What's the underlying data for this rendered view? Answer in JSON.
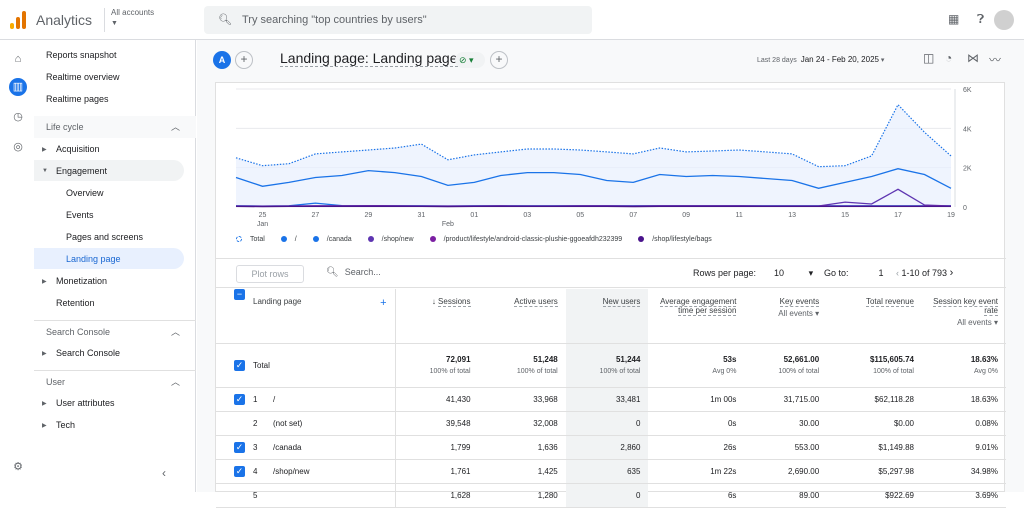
{
  "app": {
    "brand": "Analytics",
    "account_label": "All accounts",
    "search_placeholder": "Try searching \"top countries by users\""
  },
  "nav": {
    "top": [
      "Reports snapshot",
      "Realtime overview",
      "Realtime pages"
    ],
    "lifecycle": "Life cycle",
    "acquisition": "Acquisition",
    "engagement": "Engagement",
    "engagement_items": [
      "Overview",
      "Events",
      "Pages and screens",
      "Landing page"
    ],
    "monetization": "Monetization",
    "retention": "Retention",
    "search_console_section": "Search Console",
    "search_console": "Search Console",
    "user_section": "User",
    "user_attributes": "User attributes",
    "tech": "Tech"
  },
  "report": {
    "badge": "A",
    "title": "Landing page: Landing page",
    "date_prefix": "Last 28 days",
    "date_range": "Jan 24 - Feb 20, 2025"
  },
  "chart_data": {
    "type": "line",
    "x": [
      "Jan 24",
      "Jan 25",
      "Jan 26",
      "Jan 27",
      "Jan 28",
      "Jan 29",
      "Jan 30",
      "Jan 31",
      "Feb 01",
      "Feb 02",
      "Feb 03",
      "Feb 04",
      "Feb 05",
      "Feb 06",
      "Feb 07",
      "Feb 08",
      "Feb 09",
      "Feb 10",
      "Feb 11",
      "Feb 12",
      "Feb 13",
      "Feb 14",
      "Feb 15",
      "Feb 16",
      "Feb 17",
      "Feb 18",
      "Feb 19",
      "Feb 20"
    ],
    "x_tick_labels": [
      "25",
      "27",
      "29",
      "31",
      "01",
      "03",
      "05",
      "07",
      "09",
      "11",
      "13",
      "15",
      "17",
      "19"
    ],
    "x_month_labels": [
      "Jan",
      "Feb"
    ],
    "y_tick_labels": [
      "6K",
      "4K",
      "2K",
      "0"
    ],
    "ylim": [
      0,
      6000
    ],
    "series": [
      {
        "name": "Total",
        "color": "#1a73e8",
        "style": "dotted",
        "values": [
          2500,
          2100,
          2200,
          2700,
          2800,
          2900,
          3000,
          3200,
          2400,
          2650,
          2800,
          2950,
          2950,
          2900,
          2800,
          2700,
          3000,
          2800,
          2850,
          2900,
          2800,
          2700,
          2050,
          2100,
          2600,
          5200,
          3800,
          2600
        ]
      },
      {
        "name": "/",
        "color": "#1a73e8",
        "values": [
          1500,
          1050,
          1250,
          1500,
          1600,
          1850,
          1750,
          1550,
          1100,
          1250,
          1600,
          1750,
          1750,
          1650,
          1350,
          1250,
          1650,
          1550,
          1600,
          1550,
          1450,
          1350,
          950,
          1250,
          1550,
          1950,
          1650,
          950
        ]
      },
      {
        "name": "/canada",
        "color": "#1a73e8",
        "values": [
          60,
          50,
          60,
          200,
          70,
          60,
          60,
          60,
          50,
          60,
          60,
          60,
          60,
          60,
          60,
          60,
          60,
          60,
          60,
          60,
          60,
          60,
          60,
          60,
          60,
          60,
          60,
          60
        ]
      },
      {
        "name": "/shop/new",
        "color": "#5e35b1",
        "values": [
          50,
          40,
          50,
          60,
          60,
          70,
          60,
          50,
          50,
          50,
          60,
          50,
          50,
          60,
          60,
          50,
          60,
          60,
          60,
          60,
          50,
          50,
          50,
          250,
          150,
          900,
          100,
          50
        ]
      },
      {
        "name": "/product/lifestyle/android-classic-plushie-ggoeafdh232399",
        "color": "#7b1fa2",
        "values": [
          40,
          30,
          40,
          40,
          40,
          40,
          40,
          40,
          30,
          40,
          40,
          40,
          40,
          40,
          40,
          30,
          40,
          40,
          40,
          40,
          40,
          40,
          40,
          40,
          40,
          40,
          40,
          40
        ]
      },
      {
        "name": "/shop/lifestyle/bags",
        "color": "#4a148c",
        "values": [
          30,
          20,
          30,
          30,
          30,
          30,
          30,
          30,
          20,
          30,
          30,
          30,
          30,
          30,
          30,
          20,
          30,
          30,
          30,
          30,
          30,
          30,
          30,
          30,
          30,
          30,
          30,
          30
        ]
      }
    ]
  },
  "table": {
    "plot_rows": "Plot rows",
    "search_placeholder": "Search...",
    "rows_per_page_label": "Rows per page:",
    "rows_per_page": "10",
    "goto_label": "Go to:",
    "goto_value": "1",
    "range": "1-10 of 793",
    "headers": {
      "dim": "Landing page",
      "sessions": "Sessions",
      "active": "Active users",
      "new": "New users",
      "avg": "Average engagement time per session",
      "key": "Key events",
      "key_sub": "All events",
      "rev": "Total revenue",
      "rate": "Session key event rate",
      "rate_sub": "All events"
    },
    "totals": {
      "label": "Total",
      "sessions": "72,091",
      "sessions_sub": "100% of total",
      "active": "51,248",
      "active_sub": "100% of total",
      "new": "51,244",
      "new_sub": "100% of total",
      "avg": "53s",
      "avg_sub": "Avg 0%",
      "key": "52,661.00",
      "key_sub": "100% of total",
      "rev": "$115,605.74",
      "rev_sub": "100% of total",
      "rate": "18.63%",
      "rate_sub": "Avg 0%"
    },
    "rows": [
      {
        "n": "1",
        "page": "/",
        "sessions": "41,430",
        "active": "33,968",
        "new": "33,481",
        "avg": "1m 00s",
        "key": "31,715.00",
        "rev": "$62,118.28",
        "rate": "18.63%"
      },
      {
        "n": "2",
        "page": "(not set)",
        "sessions": "39,548",
        "active": "32,008",
        "new": "0",
        "avg": "0s",
        "key": "30.00",
        "rev": "$0.00",
        "rate": "0.08%"
      },
      {
        "n": "3",
        "page": "/canada",
        "sessions": "1,799",
        "active": "1,636",
        "new": "2,860",
        "avg": "26s",
        "key": "553.00",
        "rev": "$1,149.88",
        "rate": "9.01%"
      },
      {
        "n": "4",
        "page": "/shop/new",
        "sessions": "1,761",
        "active": "1,425",
        "new": "635",
        "avg": "1m 22s",
        "key": "2,690.00",
        "rev": "$5,297.98",
        "rate": "34.98%"
      },
      {
        "n": "5",
        "page": "",
        "sessions": "1,628",
        "active": "1,280",
        "new": "0",
        "avg": "6s",
        "key": "89.00",
        "rev": "$922.69",
        "rate": "3.69%"
      }
    ]
  }
}
